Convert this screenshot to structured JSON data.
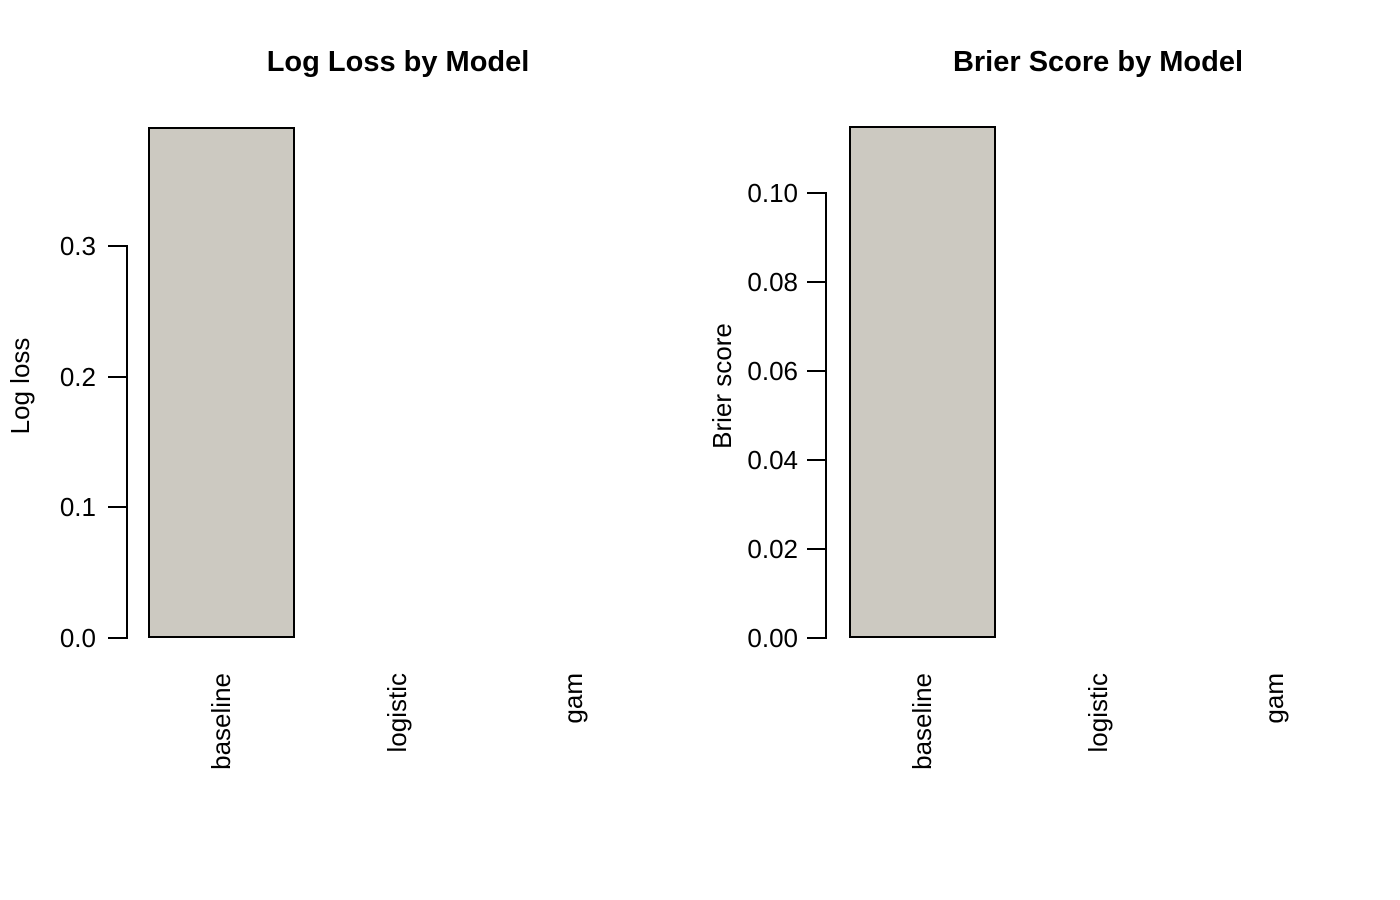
{
  "background_color": "#FFFFFF",
  "text_color": "#000000",
  "chart_data": [
    {
      "type": "bar",
      "title": "Log Loss by Model",
      "ylabel": "Log loss",
      "xlabel": "",
      "categories": [
        "baseline",
        "logistic",
        "gam"
      ],
      "values": [
        0.391,
        0,
        0
      ],
      "yticks": [
        0.0,
        0.1,
        0.2,
        0.3
      ],
      "ytick_labels": [
        "0.0",
        "0.1",
        "0.2",
        "0.3"
      ],
      "ylim": [
        0,
        0.3
      ],
      "bar_color": "#CCC9C1",
      "bar_border_color": "#000000",
      "grid": false,
      "legend": "none"
    },
    {
      "type": "bar",
      "title": "Brier Score by Model",
      "ylabel": "Brier score",
      "xlabel": "",
      "categories": [
        "baseline",
        "logistic",
        "gam"
      ],
      "values": [
        0.115,
        0,
        0
      ],
      "yticks": [
        0.0,
        0.02,
        0.04,
        0.06,
        0.08,
        0.1
      ],
      "ytick_labels": [
        "0.00",
        "0.02",
        "0.04",
        "0.06",
        "0.08",
        "0.10"
      ],
      "ylim": [
        0,
        0.1
      ],
      "bar_color": "#CCC9C1",
      "bar_border_color": "#000000",
      "grid": false,
      "legend": "none"
    }
  ]
}
